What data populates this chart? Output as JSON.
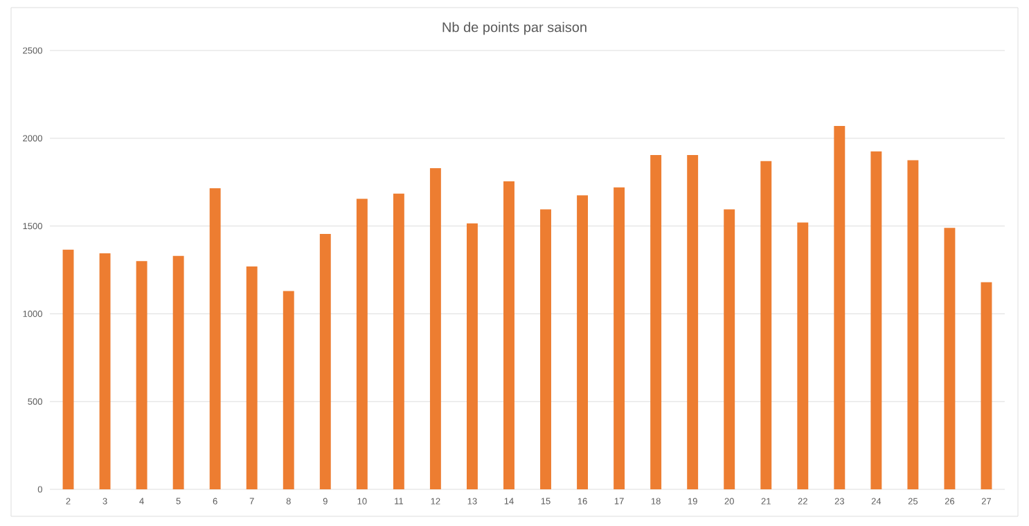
{
  "chart_data": {
    "type": "bar",
    "title": "Nb de points par saison",
    "categories": [
      "2",
      "3",
      "4",
      "5",
      "6",
      "7",
      "8",
      "9",
      "10",
      "11",
      "12",
      "13",
      "14",
      "15",
      "16",
      "17",
      "18",
      "19",
      "20",
      "21",
      "22",
      "23",
      "24",
      "25",
      "26",
      "27"
    ],
    "values": [
      1365,
      1345,
      1300,
      1330,
      1715,
      1270,
      1130,
      1455,
      1655,
      1685,
      1830,
      1515,
      1755,
      1595,
      1675,
      1720,
      1905,
      1905,
      1595,
      1870,
      1520,
      2070,
      1925,
      1875,
      1490,
      1180
    ],
    "color": "#ed7d31",
    "ylim": [
      0,
      2500
    ],
    "yticks": [
      0,
      500,
      1000,
      1500,
      2000,
      2500
    ],
    "grid": "y"
  }
}
